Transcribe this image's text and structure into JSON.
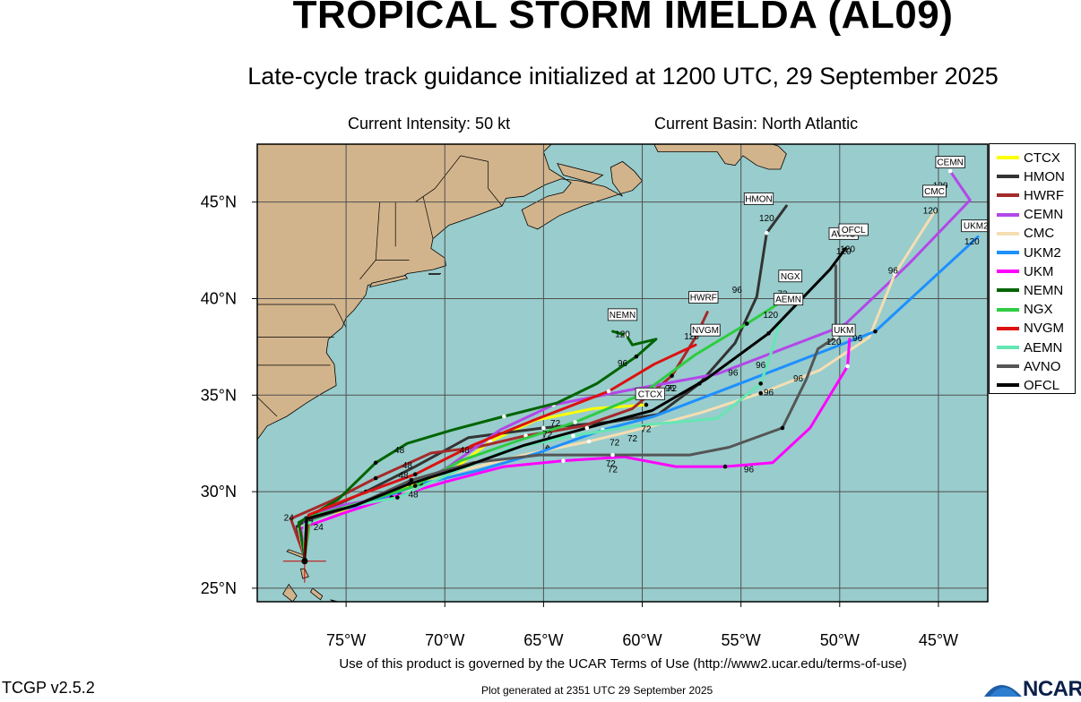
{
  "header": {
    "title": "TROPICAL STORM IMELDA (AL09)",
    "subtitle": "Late-cycle track guidance initialized at 1200 UTC, 29 September 2025",
    "intensity": "Current Intensity: 50 kt",
    "basin": "Current Basin: North Atlantic"
  },
  "colors": {
    "ocean": "#99cccc",
    "land": "#d2b48c",
    "grid": "#505050"
  },
  "map": {
    "lon_range": [
      -79.5,
      -42.5
    ],
    "lat_range": [
      24.3,
      48.0
    ],
    "lon_ticks": [
      {
        "value": -75,
        "label": "75°W"
      },
      {
        "value": -70,
        "label": "70°W"
      },
      {
        "value": -65,
        "label": "65°W"
      },
      {
        "value": -60,
        "label": "60°W"
      },
      {
        "value": -55,
        "label": "55°W"
      },
      {
        "value": -50,
        "label": "50°W"
      },
      {
        "value": -45,
        "label": "45°W"
      }
    ],
    "lat_ticks": [
      {
        "value": 25,
        "label": "25°N"
      },
      {
        "value": 30,
        "label": "30°N"
      },
      {
        "value": 35,
        "label": "35°N"
      },
      {
        "value": 40,
        "label": "40°N"
      },
      {
        "value": 45,
        "label": "45°N"
      }
    ],
    "storm_position": {
      "lon": -77.1,
      "lat": 26.4
    }
  },
  "models": [
    {
      "name": "CTCX",
      "color": "#ffff00",
      "track": [
        [
          -77.1,
          26.6
        ],
        [
          -77.2,
          27.7
        ],
        [
          -76.6,
          28.6
        ],
        [
          -74.3,
          29.3
        ],
        [
          -71.7,
          30.3
        ],
        [
          -69.5,
          31.2
        ],
        [
          -67.7,
          32.6
        ],
        [
          -65.4,
          33.7
        ],
        [
          -62.5,
          34.3
        ],
        [
          -59.8,
          34.5
        ]
      ],
      "hours": [
        {
          "lon": -64.4,
          "lat": 33.4,
          "label": "72"
        }
      ],
      "label": "CTCX",
      "label_pos": [
        -59.6,
        35.0
      ]
    },
    {
      "name": "HMON",
      "color": "#333333",
      "track": [
        [
          -77.1,
          26.6
        ],
        [
          -77.5,
          28.2
        ],
        [
          -76.4,
          28.9
        ],
        [
          -74.0,
          30.0
        ],
        [
          -71.5,
          31.3
        ],
        [
          -68.8,
          32.8
        ],
        [
          -65.0,
          33.3
        ],
        [
          -61.7,
          33.6
        ],
        [
          -59.2,
          34.0
        ],
        [
          -57.1,
          35.6
        ],
        [
          -55.3,
          37.7
        ],
        [
          -54.2,
          40.1
        ],
        [
          -53.7,
          43.4
        ],
        [
          -52.7,
          44.8
        ]
      ],
      "hours": [
        {
          "lon": -55.2,
          "lat": 40.3,
          "label": "96"
        },
        {
          "lon": -53.7,
          "lat": 44.0,
          "label": "120"
        }
      ],
      "label": "HMON",
      "label_pos": [
        -54.1,
        45.1
      ]
    },
    {
      "name": "HWRF",
      "color": "#a52a2a",
      "track": [
        [
          -77.1,
          26.6
        ],
        [
          -77.8,
          28.6
        ],
        [
          -75.8,
          29.5
        ],
        [
          -73.5,
          30.7
        ],
        [
          -70.7,
          32.0
        ],
        [
          -68.4,
          32.3
        ],
        [
          -65.9,
          32.9
        ],
        [
          -63.0,
          33.4
        ],
        [
          -60.5,
          34.3
        ],
        [
          -58.5,
          36.0
        ],
        [
          -57.3,
          38.0
        ],
        [
          -56.7,
          39.3
        ]
      ],
      "hours": [
        {
          "lon": -57.5,
          "lat": 37.9,
          "label": "120"
        }
      ],
      "label": "HWRF",
      "label_pos": [
        -56.9,
        40.0
      ]
    },
    {
      "name": "CEMN",
      "color": "#b347e8",
      "track": [
        [
          -77.1,
          26.6
        ],
        [
          -77.1,
          28.6
        ],
        [
          -75.2,
          29.3
        ],
        [
          -72.4,
          29.8
        ],
        [
          -69.8,
          31.3
        ],
        [
          -67.2,
          33.2
        ],
        [
          -64.5,
          34.5
        ],
        [
          -61.0,
          35.2
        ],
        [
          -56.2,
          36.1
        ],
        [
          -49.8,
          38.6
        ],
        [
          -46.5,
          41.8
        ],
        [
          -43.4,
          45.1
        ],
        [
          -44.4,
          46.6
        ]
      ],
      "hours": [
        {
          "lon": -47.3,
          "lat": 41.3,
          "label": "96"
        },
        {
          "lon": -44.9,
          "lat": 45.7,
          "label": "120"
        }
      ],
      "label": "CEMN",
      "label_pos": [
        -44.4,
        47.0
      ]
    },
    {
      "name": "CMC",
      "color": "#f5deb3",
      "track": [
        [
          -77.1,
          26.6
        ],
        [
          -77.4,
          28.1
        ],
        [
          -75.0,
          29.2
        ],
        [
          -72.3,
          29.9
        ],
        [
          -69.5,
          31.0
        ],
        [
          -66.0,
          31.9
        ],
        [
          -62.7,
          32.6
        ],
        [
          -59.5,
          33.4
        ],
        [
          -57.0,
          34.1
        ],
        [
          -54.0,
          35.1
        ],
        [
          -51.0,
          36.3
        ],
        [
          -48.5,
          38.0
        ],
        [
          -47.2,
          41.3
        ],
        [
          -45.2,
          44.5
        ]
      ],
      "hours": [
        {
          "lon": -52.1,
          "lat": 35.7,
          "label": "96"
        },
        {
          "lon": -45.4,
          "lat": 44.4,
          "label": "120"
        }
      ],
      "label": "CMC",
      "label_pos": [
        -45.2,
        45.5
      ]
    },
    {
      "name": "UKM2",
      "color": "#1e90ff",
      "track": [
        [
          -77.1,
          26.6
        ],
        [
          -76.9,
          28.7
        ],
        [
          -74.2,
          29.3
        ],
        [
          -71.2,
          30.4
        ],
        [
          -68.3,
          31.1
        ],
        [
          -65.3,
          32.0
        ],
        [
          -62.0,
          33.2
        ],
        [
          -59.4,
          33.9
        ],
        [
          -54.8,
          35.7
        ],
        [
          -48.2,
          38.3
        ],
        [
          -43.0,
          43.2
        ]
      ],
      "hours": [
        {
          "lon": -49.1,
          "lat": 37.8,
          "label": "96"
        },
        {
          "lon": -43.3,
          "lat": 42.8,
          "label": "120"
        }
      ],
      "label": "UKM2",
      "label_pos": [
        -43.1,
        43.7
      ]
    },
    {
      "name": "UKM",
      "color": "#ff00ff",
      "track": [
        [
          -77.1,
          26.6
        ],
        [
          -77.3,
          28.1
        ],
        [
          -75.1,
          28.9
        ],
        [
          -72.7,
          29.7
        ],
        [
          -70.0,
          30.5
        ],
        [
          -67.0,
          31.3
        ],
        [
          -64.0,
          31.6
        ],
        [
          -60.9,
          31.8
        ],
        [
          -58.3,
          31.3
        ],
        [
          -55.8,
          31.3
        ],
        [
          -53.4,
          31.5
        ],
        [
          -51.5,
          33.3
        ],
        [
          -49.6,
          36.5
        ],
        [
          -49.5,
          37.9
        ]
      ],
      "hours": [
        {
          "lon": -61.6,
          "lat": 31.3,
          "label": "72"
        },
        {
          "lon": -54.6,
          "lat": 31.0,
          "label": "96"
        },
        {
          "lon": -50.3,
          "lat": 37.6,
          "label": "120"
        }
      ],
      "label": "UKM",
      "label_pos": [
        -49.8,
        38.3
      ]
    },
    {
      "name": "NEMN",
      "color": "#006400",
      "track": [
        [
          -77.1,
          26.6
        ],
        [
          -77.4,
          28.4
        ],
        [
          -75.4,
          29.6
        ],
        [
          -73.5,
          31.5
        ],
        [
          -71.9,
          32.5
        ],
        [
          -69.6,
          33.2
        ],
        [
          -67.0,
          33.9
        ],
        [
          -64.3,
          34.6
        ],
        [
          -62.3,
          35.6
        ],
        [
          -60.3,
          37.0
        ],
        [
          -59.3,
          37.9
        ],
        [
          -60.5,
          37.6
        ],
        [
          -60.8,
          38.1
        ],
        [
          -61.5,
          38.3
        ]
      ],
      "hours": [
        {
          "lon": -61.0,
          "lat": 36.5,
          "label": "96"
        },
        {
          "lon": -61.0,
          "lat": 38.0,
          "label": "120"
        }
      ],
      "label": "NEMN",
      "label_pos": [
        -61.0,
        39.1
      ]
    },
    {
      "name": "NGX",
      "color": "#2ecc40",
      "track": [
        [
          -77.1,
          26.6
        ],
        [
          -76.8,
          28.7
        ],
        [
          -74.0,
          29.5
        ],
        [
          -71.5,
          30.3
        ],
        [
          -69.2,
          31.6
        ],
        [
          -66.4,
          32.6
        ],
        [
          -63.4,
          33.6
        ],
        [
          -60.1,
          35.0
        ],
        [
          -57.3,
          37.1
        ],
        [
          -54.7,
          38.7
        ],
        [
          -52.7,
          40.0
        ]
      ],
      "hours": [
        {
          "lon": -52.9,
          "lat": 40.1,
          "label": "72"
        }
      ],
      "label": "NGX",
      "label_pos": [
        -52.5,
        41.1
      ]
    },
    {
      "name": "NVGM",
      "color": "#dd1111",
      "track": [
        [
          -77.1,
          26.6
        ],
        [
          -76.9,
          28.8
        ],
        [
          -74.7,
          29.7
        ],
        [
          -71.5,
          30.9
        ],
        [
          -68.6,
          32.4
        ],
        [
          -65.5,
          33.7
        ],
        [
          -61.7,
          35.2
        ],
        [
          -59.4,
          36.6
        ],
        [
          -57.3,
          37.6
        ]
      ],
      "hours": [],
      "label": "NVGM",
      "label_pos": [
        -56.8,
        38.3
      ]
    },
    {
      "name": "AEMN",
      "color": "#66e6b3",
      "track": [
        [
          -77.1,
          26.6
        ],
        [
          -77.1,
          28.3
        ],
        [
          -75.0,
          29.2
        ],
        [
          -72.4,
          29.7
        ],
        [
          -69.8,
          30.9
        ],
        [
          -66.8,
          32.2
        ],
        [
          -63.5,
          32.9
        ],
        [
          -60.4,
          33.4
        ],
        [
          -56.2,
          33.8
        ],
        [
          -54.0,
          35.6
        ],
        [
          -53.5,
          37.1
        ],
        [
          -53.0,
          38.9
        ]
      ],
      "hours": [
        {
          "lon": -53.6,
          "lat": 35.0,
          "label": "96"
        },
        {
          "lon": -53.5,
          "lat": 39.0,
          "label": "120"
        }
      ],
      "label": "AEMN",
      "label_pos": [
        -52.6,
        39.9
      ]
    },
    {
      "name": "AVNO",
      "color": "#555555",
      "track": [
        [
          -77.1,
          26.6
        ],
        [
          -77.0,
          28.5
        ],
        [
          -74.5,
          29.3
        ],
        [
          -71.7,
          30.6
        ],
        [
          -68.6,
          31.5
        ],
        [
          -65.2,
          31.9
        ],
        [
          -61.5,
          31.9
        ],
        [
          -57.6,
          31.9
        ],
        [
          -55.6,
          32.3
        ],
        [
          -52.9,
          33.3
        ],
        [
          -51.7,
          35.8
        ],
        [
          -51.1,
          37.4
        ],
        [
          -50.2,
          38.0
        ],
        [
          -50.2,
          39.3
        ],
        [
          -50.2,
          41.7
        ]
      ],
      "hours": [
        {
          "lon": -49.8,
          "lat": 42.3,
          "label": "120"
        }
      ],
      "label": "AVNO",
      "label_pos": [
        -49.8,
        43.3
      ]
    },
    {
      "name": "OFCL",
      "color": "#000000",
      "track": [
        [
          -77.1,
          26.6
        ],
        [
          -77.0,
          28.6
        ],
        [
          -74.5,
          29.3
        ],
        [
          -71.8,
          30.4
        ],
        [
          -69.0,
          31.3
        ],
        [
          -66.0,
          32.4
        ],
        [
          -62.8,
          33.3
        ],
        [
          -59.5,
          34.2
        ],
        [
          -56.8,
          35.8
        ],
        [
          -53.6,
          38.2
        ],
        [
          -50.5,
          41.5
        ],
        [
          -49.7,
          42.6
        ]
      ],
      "hours": [
        {
          "lon": -58.5,
          "lat": 35.2,
          "label": "72"
        },
        {
          "lon": -55.4,
          "lat": 36.0,
          "label": "96"
        },
        {
          "lon": -49.6,
          "lat": 42.4,
          "label": "120"
        }
      ],
      "label": "OFCL",
      "label_pos": [
        -49.3,
        43.5
      ]
    }
  ],
  "extra_hour_labels": [
    {
      "lon": -72.3,
      "lat": 32.0,
      "label": "48"
    },
    {
      "lon": -72.1,
      "lat": 30.7,
      "label": "48"
    },
    {
      "lon": -71.9,
      "lat": 31.2,
      "label": "48"
    },
    {
      "lon": -71.6,
      "lat": 29.7,
      "label": "48"
    },
    {
      "lon": -69.0,
      "lat": 32.0,
      "label": "48"
    },
    {
      "lon": -61.4,
      "lat": 32.4,
      "label": "72"
    },
    {
      "lon": -60.5,
      "lat": 32.6,
      "label": "72"
    },
    {
      "lon": -59.8,
      "lat": 33.1,
      "label": "72"
    },
    {
      "lon": -64.8,
      "lat": 32.8,
      "label": "72"
    },
    {
      "lon": -61.5,
      "lat": 31.0,
      "label": "72"
    },
    {
      "lon": -58.6,
      "lat": 35.2,
      "label": "96"
    },
    {
      "lon": -54.0,
      "lat": 36.4,
      "label": "96"
    },
    {
      "lon": -50.1,
      "lat": 38.2,
      "label": "96"
    },
    {
      "lon": -77.9,
      "lat": 28.5,
      "label": "24"
    },
    {
      "lon": -76.9,
      "lat": 28.4,
      "label": "24"
    },
    {
      "lon": -76.4,
      "lat": 28.0,
      "label": "24"
    }
  ],
  "footer": {
    "terms": "Use of this product is governed by the UCAR Terms of Use (http://www2.ucar.edu/terms-of-use)",
    "generated": "Plot generated at 2351 UTC  29 September 2025",
    "version": "TCGP v2.5.2",
    "logo": "NCAR"
  }
}
